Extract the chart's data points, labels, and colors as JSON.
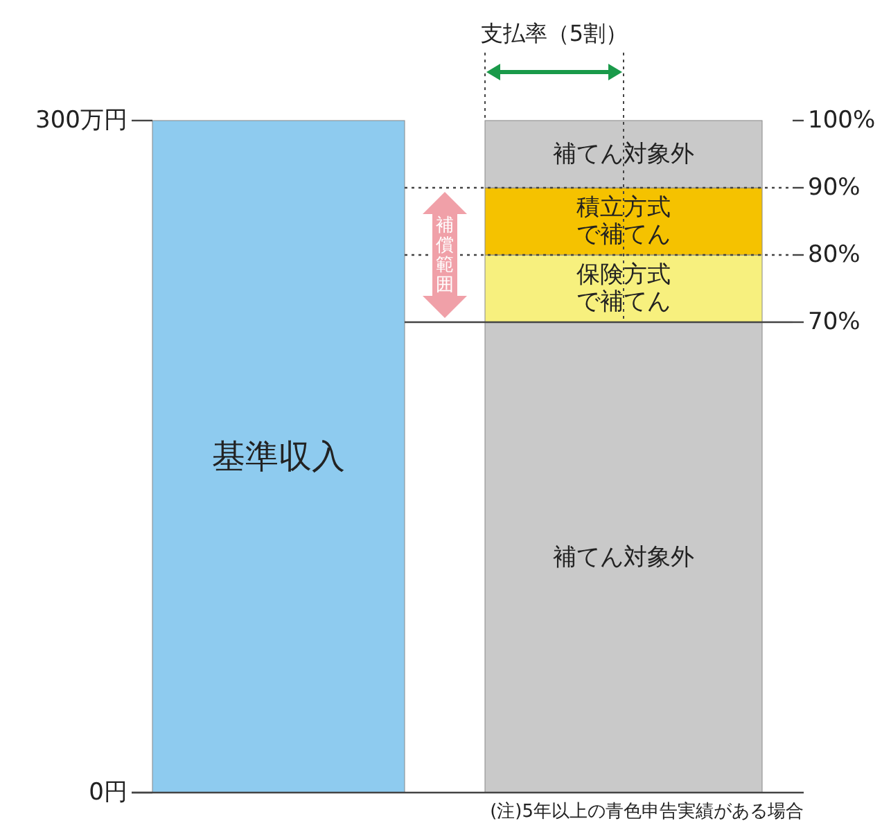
{
  "chart_data": {
    "type": "bar",
    "stacked": true,
    "categories": [
      null,
      null
    ],
    "series": [
      {
        "name": "基準収入",
        "color": "#8ecbef",
        "values": [
          300,
          null
        ]
      },
      {
        "name": "補てん対象外",
        "color": "#c9c9c9",
        "values": [
          null,
          70
        ],
        "axis": "y2"
      },
      {
        "name": "保険方式で補てん",
        "color": "#f7f07e",
        "values": [
          null,
          10
        ],
        "axis": "y2"
      },
      {
        "name": "積立方式で補てん",
        "color": "#f5c200",
        "values": [
          null,
          10
        ],
        "axis": "y2"
      },
      {
        "name": "補てん対象外",
        "color": "#c9c9c9",
        "values": [
          null,
          10
        ],
        "axis": "y2"
      }
    ],
    "ylim": [
      0,
      300
    ],
    "yticks": [
      {
        "value": 0,
        "label": "0円"
      },
      {
        "value": 300,
        "label": "300万円"
      }
    ],
    "y2lim": [
      0,
      100
    ],
    "y2ticks": [
      {
        "value": 70,
        "label": "70%"
      },
      {
        "value": 80,
        "label": "80%"
      },
      {
        "value": 90,
        "label": "90%"
      },
      {
        "value": 100,
        "label": "100%"
      }
    ],
    "ref_lines": [
      {
        "axis": "y2",
        "value": 90,
        "line_style": "dotted"
      },
      {
        "axis": "y2",
        "value": 80,
        "line_style": "dotted"
      },
      {
        "axis": "y2",
        "value": 70,
        "line_style": "solid"
      }
    ],
    "annotations": [
      "支払率（5割）",
      "(注)5年以上の青色申告実績がある場合",
      "補償範囲"
    ]
  }
}
